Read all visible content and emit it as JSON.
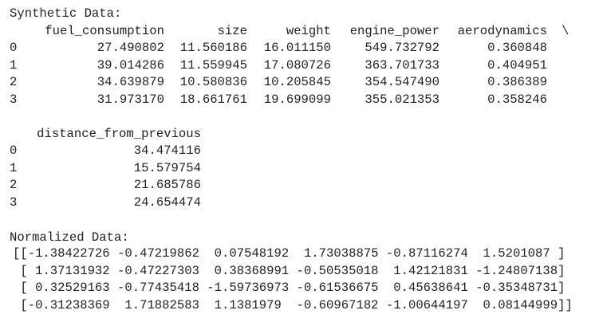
{
  "synthetic": {
    "title": "Synthetic Data:",
    "columns": [
      "fuel_consumption",
      "size",
      "weight",
      "engine_power",
      "aerodynamics"
    ],
    "continuation": "\\",
    "rows": [
      {
        "index": "0",
        "cells": [
          "27.490802",
          "11.560186",
          "16.011150",
          "549.732792",
          "0.360848"
        ]
      },
      {
        "index": "1",
        "cells": [
          "39.014286",
          "11.559945",
          "17.080726",
          "363.701733",
          "0.404951"
        ]
      },
      {
        "index": "2",
        "cells": [
          "34.639879",
          "10.580836",
          "10.205845",
          "354.547490",
          "0.386389"
        ]
      },
      {
        "index": "3",
        "cells": [
          "31.973170",
          "18.661761",
          "19.699099",
          "355.021353",
          "0.358246"
        ]
      }
    ]
  },
  "synthetic_continued": {
    "columns": [
      "distance_from_previous"
    ],
    "rows": [
      {
        "index": "0",
        "cells": [
          "34.474116"
        ]
      },
      {
        "index": "1",
        "cells": [
          "15.579754"
        ]
      },
      {
        "index": "2",
        "cells": [
          "21.685786"
        ]
      },
      {
        "index": "3",
        "cells": [
          "24.654474"
        ]
      }
    ]
  },
  "normalized": {
    "title": "Normalized Data:",
    "lines": [
      "[[-1.38422726 -0.47219862  0.07548192  1.73038875 -0.87116274  1.5201087 ]",
      " [ 1.37131932 -0.47227303  0.38368991 -0.50535018  1.42121831 -1.24807138]",
      " [ 0.32529163 -0.77435418 -1.59736973 -0.61536675  0.45638641 -0.35348731]",
      " [-0.31238369  1.71882583  1.1381979  -0.60967182 -1.00644197  0.08144999]]"
    ]
  }
}
